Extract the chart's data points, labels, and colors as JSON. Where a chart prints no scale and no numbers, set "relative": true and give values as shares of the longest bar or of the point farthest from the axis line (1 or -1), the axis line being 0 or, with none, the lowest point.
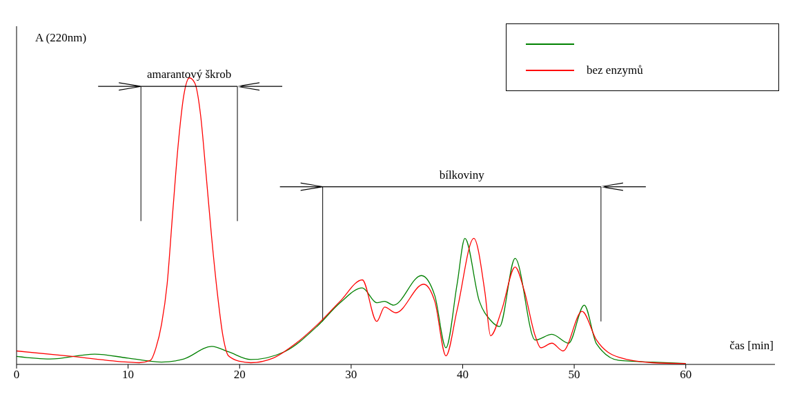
{
  "chart_data": {
    "type": "line",
    "relative": true,
    "xlabel": "čas [min]",
    "ylabel": "A (220nm)",
    "xlim": [
      0,
      68
    ],
    "xticks": [
      0,
      10,
      20,
      30,
      40,
      50,
      60
    ],
    "grid": false,
    "legend": "top right",
    "marker": "none",
    "line_style": "solid",
    "ref_lines": [
      {
        "axis": "x",
        "value": 11.15
      },
      {
        "axis": "x",
        "value": 19.8
      },
      {
        "axis": "x",
        "value": 27.45
      },
      {
        "axis": "x",
        "value": 52.4
      }
    ],
    "annotations": [
      "amarantový škrob",
      "bílkoviny"
    ],
    "series": [
      {
        "color": "#008000",
        "x": [
          0,
          3,
          7,
          10,
          13,
          15,
          17.5,
          19,
          21,
          24,
          27,
          29,
          31,
          32.3,
          33,
          33.8,
          36.3,
          37.5,
          38.5,
          39.5,
          40.2,
          41.5,
          42.5,
          43.3,
          44.7,
          46.5,
          48,
          49.5,
          50.9,
          52,
          54,
          57,
          60
        ],
        "values": [
          0.028,
          0.019,
          0.036,
          0.022,
          0.008,
          0.019,
          0.063,
          0.044,
          0.017,
          0.044,
          0.135,
          0.215,
          0.267,
          0.215,
          0.22,
          0.207,
          0.31,
          0.24,
          0.058,
          0.28,
          0.44,
          0.22,
          0.154,
          0.132,
          0.37,
          0.085,
          0.105,
          0.074,
          0.207,
          0.072,
          0.014,
          0.008,
          0.003
        ]
      },
      {
        "name": "bez enzymů",
        "color": "#ff0000",
        "x": [
          0,
          5,
          10,
          11,
          12,
          12.5,
          13,
          13.5,
          14,
          14.5,
          15,
          15.5,
          16,
          16.5,
          17,
          17.5,
          18,
          18.5,
          19,
          20,
          21,
          23,
          25,
          27,
          29,
          31,
          32.3,
          33,
          34,
          36.5,
          37.5,
          38.5,
          39.5,
          41,
          42,
          42.5,
          43.5,
          44.7,
          45.5,
          46.5,
          47,
          48,
          49,
          50.7,
          52,
          54,
          57,
          60
        ],
        "values": [
          0.047,
          0.028,
          0.008,
          0.006,
          0.014,
          0.058,
          0.14,
          0.28,
          0.53,
          0.77,
          0.94,
          1.0,
          0.98,
          0.87,
          0.66,
          0.44,
          0.25,
          0.1,
          0.03,
          0.011,
          0.006,
          0.022,
          0.072,
          0.14,
          0.22,
          0.295,
          0.15,
          0.2,
          0.18,
          0.28,
          0.22,
          0.03,
          0.19,
          0.44,
          0.25,
          0.1,
          0.19,
          0.34,
          0.26,
          0.1,
          0.058,
          0.074,
          0.047,
          0.185,
          0.085,
          0.025,
          0.006,
          0.003
        ]
      }
    ]
  }
}
